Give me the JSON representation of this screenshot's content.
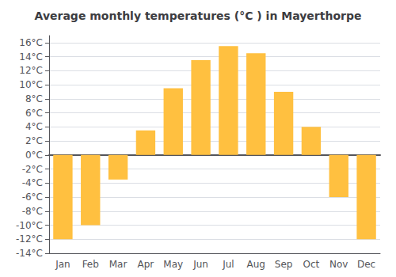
{
  "chart_data": {
    "type": "bar",
    "title": "Average monthly temperatures (°C ) in Mayerthorpe",
    "categories": [
      "Jan",
      "Feb",
      "Mar",
      "Apr",
      "May",
      "Jun",
      "Jul",
      "Aug",
      "Sep",
      "Oct",
      "Nov",
      "Dec"
    ],
    "values": [
      -12,
      -10,
      -3.5,
      3.5,
      9.5,
      13.5,
      15.5,
      14.5,
      9,
      4,
      -6,
      -12
    ],
    "color": "#FFC040",
    "ylim": [
      -14,
      17
    ],
    "yticks": [
      {
        "value": -14,
        "label": "-14°C"
      },
      {
        "value": -12,
        "label": "-12°C"
      },
      {
        "value": -10,
        "label": "-10°C"
      },
      {
        "value": -8,
        "label": "-8°C"
      },
      {
        "value": -6,
        "label": "-6°C"
      },
      {
        "value": -4,
        "label": "-4°C"
      },
      {
        "value": -2,
        "label": "-2°C"
      },
      {
        "value": 0,
        "label": "0°C"
      },
      {
        "value": 2,
        "label": "2°C"
      },
      {
        "value": 4,
        "label": "4°C"
      },
      {
        "value": 6,
        "label": "6°C"
      },
      {
        "value": 8,
        "label": "8°C"
      },
      {
        "value": 10,
        "label": "10°C"
      },
      {
        "value": 12,
        "label": "12°C"
      },
      {
        "value": 14,
        "label": "14°C"
      },
      {
        "value": 16,
        "label": "16°C"
      }
    ],
    "grid": true
  }
}
